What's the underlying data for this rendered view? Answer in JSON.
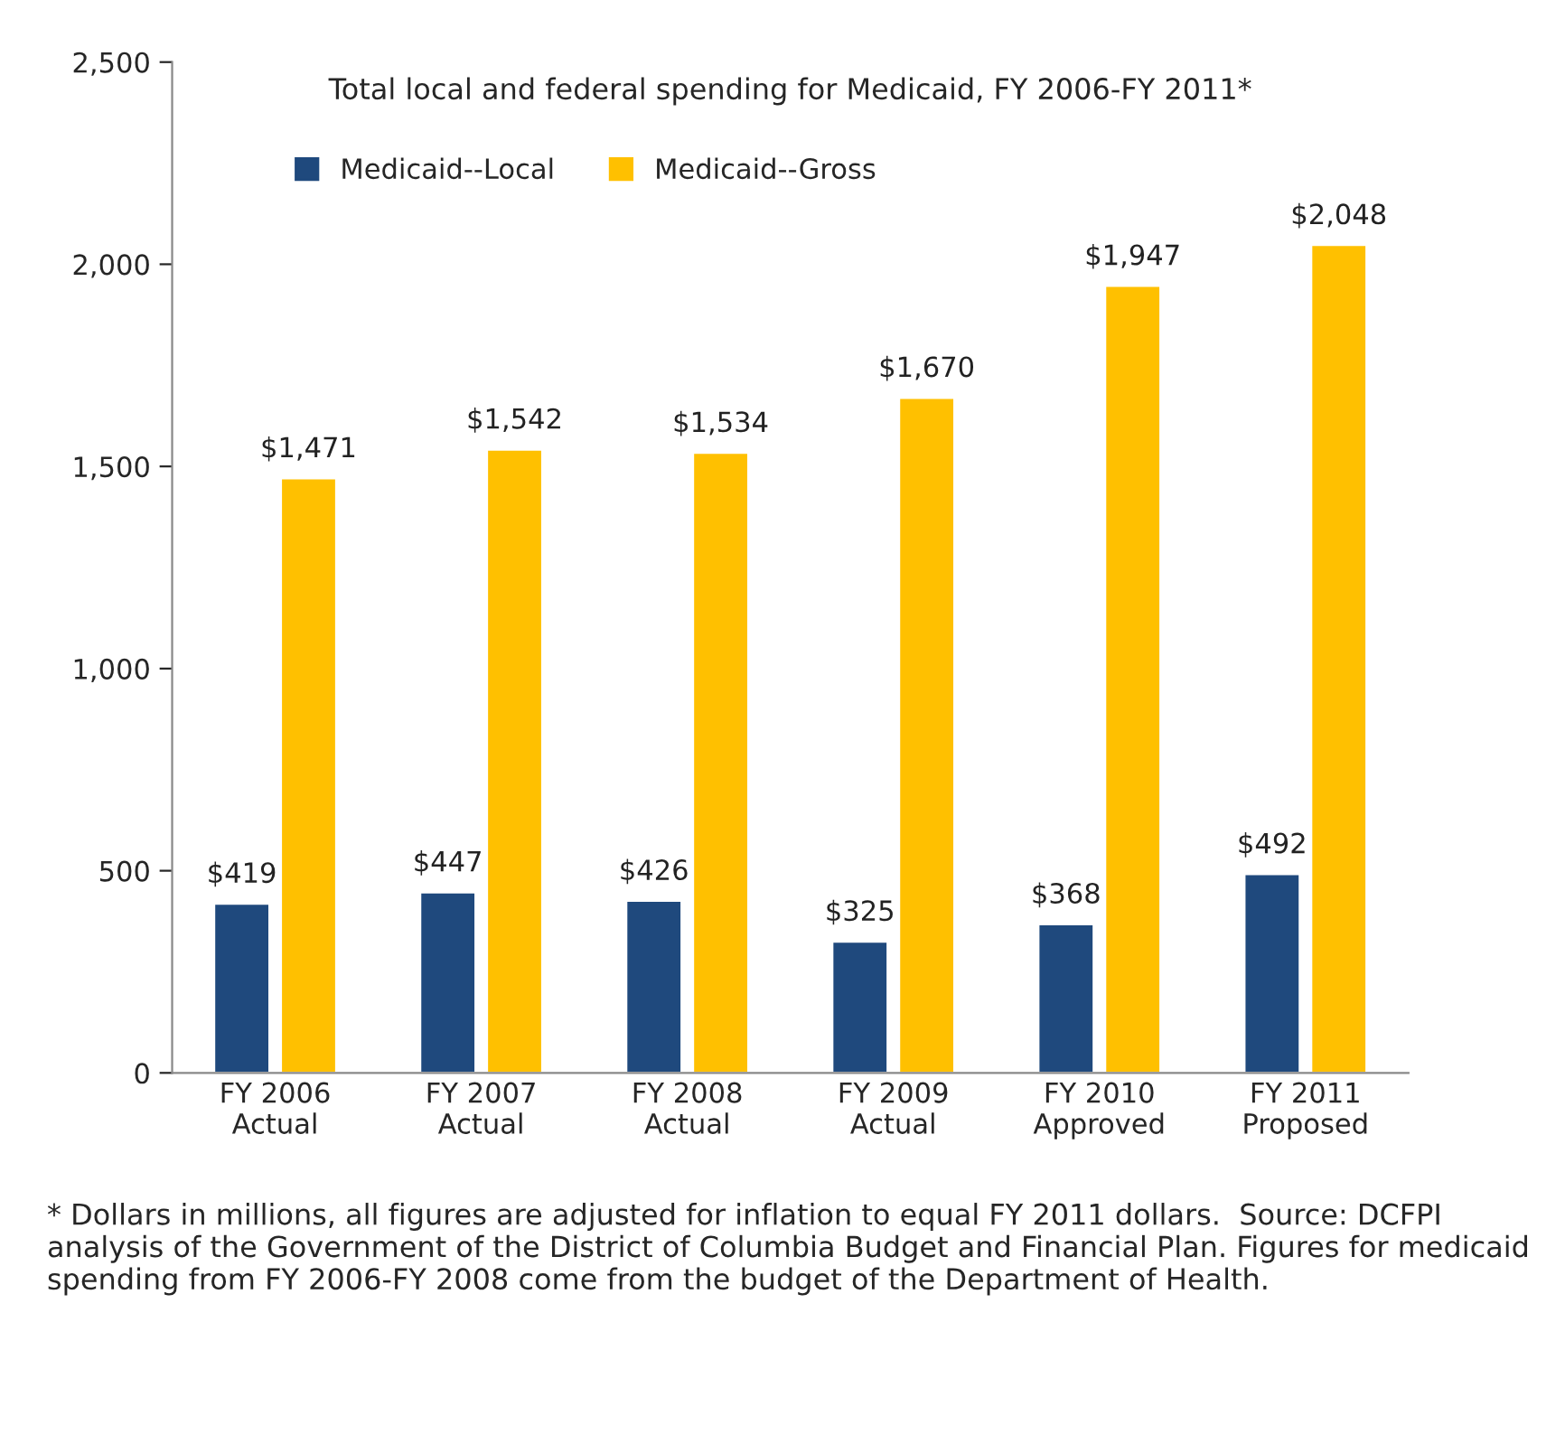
{
  "chart_data": {
    "type": "bar",
    "title": "Total local and federal spending for Medicaid, FY 2006-FY 2011*",
    "categories": [
      "FY 2006\nActual",
      "FY 2007\nActual",
      "FY 2008\nActual",
      "FY 2009\nActual",
      "FY 2010\nApproved",
      "FY 2011\nProposed"
    ],
    "series": [
      {
        "name": "Medicaid--Local",
        "color": "#1f497d",
        "values": [
          419,
          447,
          426,
          325,
          368,
          492
        ],
        "value_labels": [
          "$419",
          "$447",
          "$426",
          "$325",
          "$368",
          "$492"
        ]
      },
      {
        "name": "Medicaid--Gross",
        "color": "#ffc000",
        "values": [
          1471,
          1542,
          1534,
          1670,
          1947,
          2048
        ],
        "value_labels": [
          "$1,471",
          "$1,542",
          "$1,534",
          "$1,670",
          "$1,947",
          "$2,048"
        ]
      }
    ],
    "ylim": [
      0,
      2500
    ],
    "yticks": [
      0,
      {
        "value": 500,
        "label": "500"
      },
      {
        "value": 1000,
        "label": "1,000"
      },
      {
        "value": 1500,
        "label": "1,500"
      },
      {
        "value": 2000,
        "label": "2,000"
      },
      {
        "value": 2500,
        "label": "2,500"
      }
    ],
    "grid": false,
    "legend": "top left",
    "annotations": [
      "* Dollars in millions, all figures are adjusted for inflation to equal FY 2011 dollars.  Source: DCFPI analysis of the Government of the District of Columbia Budget and Financial Plan. Figures for medicaid spending from FY 2006-FY 2008 come from the budget of the Department of Health."
    ]
  }
}
